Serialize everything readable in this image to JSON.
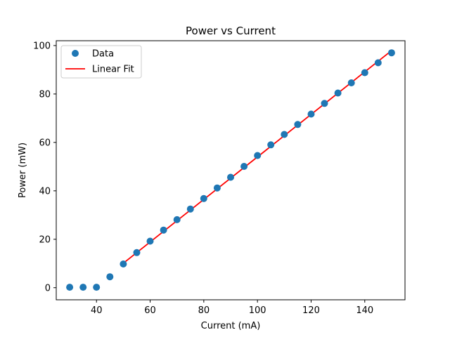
{
  "chart_data": {
    "type": "scatter",
    "title": "Power vs Current",
    "xlabel": "Current (mA)",
    "ylabel": "Power (mW)",
    "xlim": [
      25,
      155
    ],
    "ylim": [
      -5,
      102
    ],
    "xticks": [
      40,
      60,
      80,
      100,
      120,
      140
    ],
    "yticks": [
      0,
      20,
      40,
      60,
      80,
      100
    ],
    "grid": false,
    "legend_placement": "top-left",
    "series": [
      {
        "name": "Data",
        "kind": "scatter",
        "color": "#1f77b4",
        "x": [
          30,
          35,
          40,
          45,
          50,
          55,
          60,
          65,
          70,
          75,
          80,
          85,
          90,
          95,
          100,
          105,
          110,
          115,
          120,
          125,
          130,
          135,
          140,
          145,
          150
        ],
        "y": [
          0.2,
          0.2,
          0.2,
          4.5,
          9.8,
          14.5,
          19.2,
          23.8,
          28.1,
          32.5,
          36.8,
          41.2,
          45.6,
          50.1,
          54.6,
          59.0,
          63.3,
          67.4,
          71.7,
          76.1,
          80.4,
          84.6,
          88.8,
          92.9,
          97.0
        ]
      },
      {
        "name": "Linear Fit",
        "kind": "line",
        "color": "#ff0000",
        "x": [
          50,
          150
        ],
        "y": [
          10.1,
          97.9
        ]
      }
    ]
  }
}
